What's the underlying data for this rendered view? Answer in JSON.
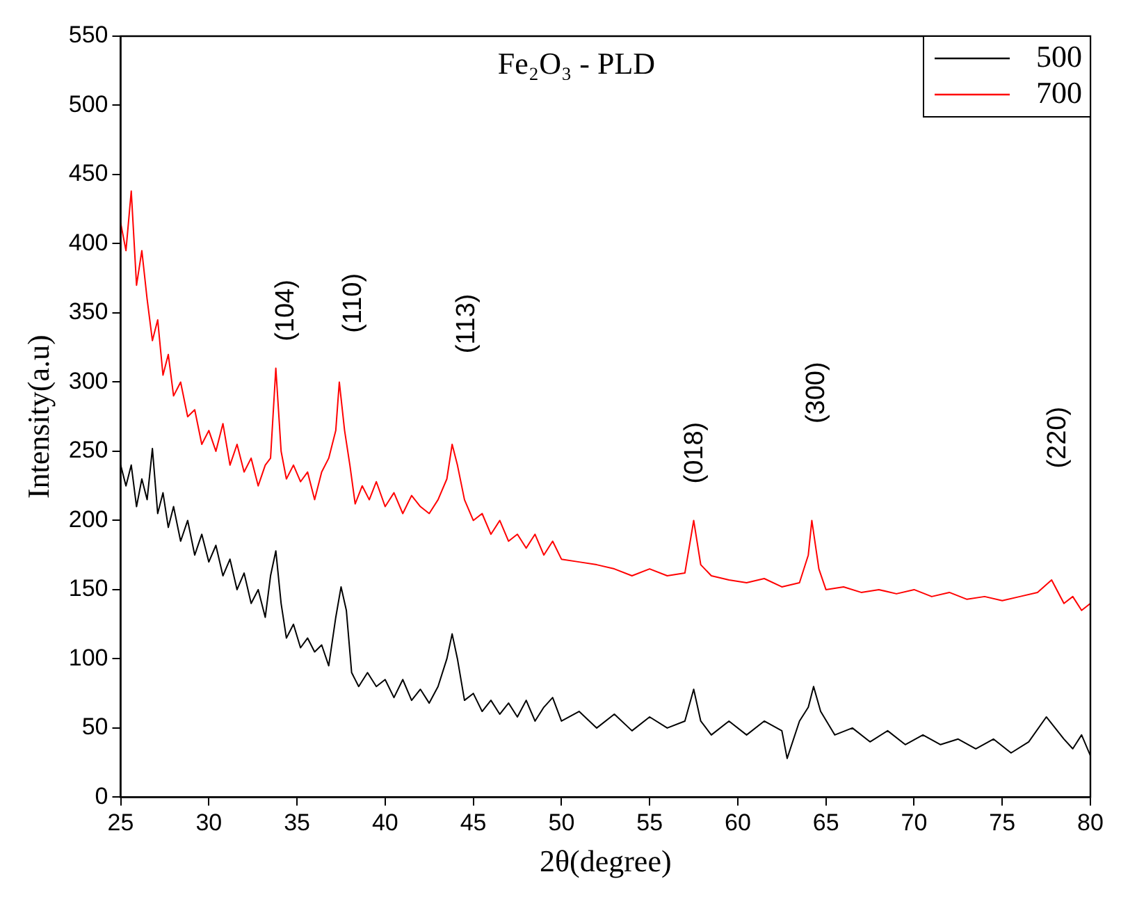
{
  "chart_data": {
    "type": "line",
    "title": "Fe₂O₃ - PLD",
    "xlabel": "2θ(degree)",
    "ylabel": "Intensity(a.u)",
    "xlim": [
      25,
      80
    ],
    "xticks": [
      25,
      30,
      35,
      40,
      45,
      50,
      55,
      60,
      65,
      70,
      75,
      80
    ],
    "ylim": [
      0,
      550
    ],
    "yticks": [
      0,
      50,
      100,
      150,
      200,
      250,
      300,
      350,
      400,
      450,
      500,
      550
    ],
    "grid": false,
    "legend": "top right",
    "marker": "none",
    "line_style": "solid",
    "annotations": [
      "(104)",
      "(110)",
      "(113)",
      "(018)",
      "(300)",
      "(220)"
    ],
    "series": [
      {
        "name": "500",
        "color": "#000000",
        "x": [
          25,
          25.3,
          25.6,
          25.9,
          26.2,
          26.5,
          26.8,
          27.1,
          27.4,
          27.7,
          28,
          28.4,
          28.8,
          29.2,
          29.6,
          30,
          30.4,
          30.8,
          31.2,
          31.6,
          32,
          32.4,
          32.8,
          33.2,
          33.5,
          33.8,
          34.1,
          34.4,
          34.8,
          35.2,
          35.6,
          36,
          36.4,
          36.8,
          37.2,
          37.5,
          37.8,
          38.1,
          38.5,
          39,
          39.5,
          40,
          40.5,
          41,
          41.5,
          42,
          42.5,
          43,
          43.5,
          43.8,
          44.1,
          44.5,
          45,
          45.5,
          46,
          46.5,
          47,
          47.5,
          48,
          48.5,
          49,
          49.5,
          50,
          51,
          52,
          53,
          54,
          55,
          56,
          57,
          57.5,
          57.9,
          58.5,
          59.5,
          60.5,
          61.5,
          62.5,
          62.8,
          63.5,
          64,
          64.3,
          64.7,
          65.5,
          66.5,
          67.5,
          68.5,
          69.5,
          70.5,
          71.5,
          72.5,
          73.5,
          74.5,
          75.5,
          76.5,
          77.5,
          78,
          78.5,
          79,
          79.5,
          80
        ],
        "values": [
          240,
          225,
          240,
          210,
          230,
          215,
          252,
          205,
          220,
          195,
          210,
          185,
          200,
          175,
          190,
          170,
          182,
          160,
          172,
          150,
          162,
          140,
          150,
          130,
          160,
          178,
          140,
          115,
          125,
          108,
          115,
          105,
          110,
          95,
          130,
          152,
          135,
          90,
          80,
          90,
          80,
          85,
          72,
          85,
          70,
          78,
          68,
          80,
          100,
          118,
          100,
          70,
          75,
          62,
          70,
          60,
          68,
          58,
          70,
          55,
          65,
          72,
          55,
          62,
          50,
          60,
          48,
          58,
          50,
          55,
          78,
          55,
          45,
          55,
          45,
          55,
          48,
          28,
          55,
          65,
          80,
          62,
          45,
          50,
          40,
          48,
          38,
          45,
          38,
          42,
          35,
          42,
          32,
          40,
          58,
          50,
          42,
          35,
          45,
          30
        ]
      },
      {
        "name": "700",
        "color": "#ff0000",
        "x": [
          25,
          25.3,
          25.6,
          25.9,
          26.2,
          26.5,
          26.8,
          27.1,
          27.4,
          27.7,
          28,
          28.4,
          28.8,
          29.2,
          29.6,
          30,
          30.4,
          30.8,
          31.2,
          31.6,
          32,
          32.4,
          32.8,
          33.2,
          33.5,
          33.8,
          34.1,
          34.4,
          34.8,
          35.2,
          35.6,
          36,
          36.4,
          36.8,
          37.2,
          37.4,
          37.7,
          38,
          38.3,
          38.7,
          39.1,
          39.5,
          40,
          40.5,
          41,
          41.5,
          42,
          42.5,
          43,
          43.5,
          43.8,
          44.1,
          44.5,
          45,
          45.5,
          46,
          46.5,
          47,
          47.5,
          48,
          48.5,
          49,
          49.5,
          50,
          51,
          52,
          53,
          54,
          55,
          56,
          57,
          57.5,
          57.9,
          58.5,
          59.5,
          60.5,
          61.5,
          62.5,
          63.5,
          64,
          64.2,
          64.6,
          65,
          66,
          67,
          68,
          69,
          70,
          71,
          72,
          73,
          74,
          75,
          76,
          77,
          77.8,
          78.5,
          79,
          79.5,
          80
        ],
        "values": [
          415,
          395,
          438,
          370,
          395,
          360,
          330,
          345,
          305,
          320,
          290,
          300,
          275,
          280,
          255,
          265,
          250,
          270,
          240,
          255,
          235,
          245,
          225,
          240,
          245,
          310,
          250,
          230,
          240,
          228,
          235,
          215,
          235,
          245,
          265,
          300,
          265,
          240,
          212,
          225,
          215,
          228,
          210,
          220,
          205,
          218,
          210,
          205,
          215,
          230,
          255,
          240,
          215,
          200,
          205,
          190,
          200,
          185,
          190,
          180,
          190,
          175,
          185,
          172,
          170,
          168,
          165,
          160,
          165,
          160,
          162,
          200,
          168,
          160,
          157,
          155,
          158,
          152,
          155,
          175,
          200,
          165,
          150,
          152,
          148,
          150,
          147,
          150,
          145,
          148,
          143,
          145,
          142,
          145,
          148,
          157,
          140,
          145,
          135,
          140
        ]
      }
    ]
  }
}
